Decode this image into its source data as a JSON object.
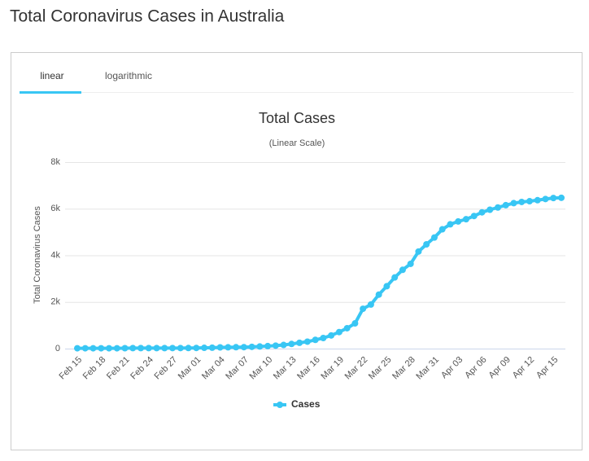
{
  "page_title": "Total Coronavirus Cases in Australia",
  "tabs": [
    "linear",
    "logarithmic"
  ],
  "chart_data": {
    "type": "line",
    "title": "Total Cases",
    "subtitle": "(Linear Scale)",
    "y_label": "Total Coronavirus Cases",
    "categories": [
      "Feb 15",
      null,
      null,
      "Feb 18",
      null,
      null,
      "Feb 21",
      null,
      null,
      "Feb 24",
      null,
      null,
      "Feb 27",
      null,
      null,
      "Mar 01",
      null,
      null,
      "Mar 04",
      null,
      null,
      "Mar 07",
      null,
      null,
      "Mar 10",
      null,
      null,
      "Mar 13",
      null,
      null,
      "Mar 16",
      null,
      null,
      "Mar 19",
      null,
      null,
      "Mar 22",
      null,
      null,
      "Mar 25",
      null,
      null,
      "Mar 28",
      null,
      null,
      "Mar 31",
      null,
      null,
      "Apr 03",
      null,
      null,
      "Apr 06",
      null,
      null,
      "Apr 09",
      null,
      null,
      "Apr 12",
      null,
      null,
      "Apr 15",
      null
    ],
    "series": [
      {
        "name": "Cases",
        "color": "#38c6f4",
        "values": [
          15,
          15,
          15,
          15,
          15,
          15,
          17,
          22,
          22,
          22,
          22,
          22,
          23,
          23,
          25,
          27,
          33,
          39,
          52,
          55,
          60,
          63,
          76,
          91,
          107,
          128,
          156,
          199,
          249,
          298,
          375,
          454,
          565,
          709,
          874,
          1081,
          1709,
          1891,
          2316,
          2676,
          3051,
          3378,
          3635,
          4163,
          4472,
          4764,
          5116,
          5330,
          5453,
          5550,
          5687,
          5844,
          5956,
          6052,
          6152,
          6238,
          6289,
          6322,
          6366,
          6416,
          6458,
          6468
        ]
      }
    ],
    "ylim": [
      0,
      8000
    ],
    "yticks": [
      0,
      {
        "value": 2000,
        "label": "2k"
      },
      {
        "value": 4000,
        "label": "4k"
      },
      {
        "value": 6000,
        "label": "6k"
      },
      {
        "value": 8000,
        "label": "8k"
      }
    ],
    "grid": true,
    "legend": "bottom"
  }
}
